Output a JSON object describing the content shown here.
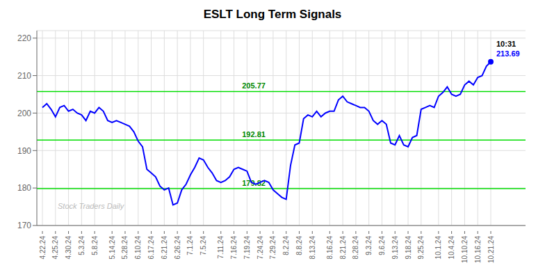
{
  "chart_data": {
    "type": "line",
    "title": "ESLT Long Term Signals",
    "categories": [
      "4.22.24",
      null,
      null,
      "4.25.24",
      null,
      null,
      "4.30.24",
      null,
      null,
      "5.3.24",
      null,
      null,
      "5.8.24",
      null,
      null,
      null,
      "5.14.24",
      null,
      null,
      "5.28.24",
      null,
      null,
      "6.10.24",
      null,
      null,
      "6.17.24",
      null,
      null,
      "6.21.24",
      null,
      null,
      "6.26.24",
      null,
      null,
      "7.1.24",
      null,
      null,
      "7.5.24",
      null,
      null,
      null,
      "7.11.24",
      null,
      null,
      "7.16.24",
      null,
      null,
      "7.19.24",
      null,
      null,
      "7.24.24",
      null,
      null,
      "7.29.24",
      null,
      null,
      "8.2.24",
      null,
      null,
      "8.8.24",
      null,
      null,
      "8.13.24",
      null,
      null,
      null,
      "8.16.24",
      null,
      null,
      "8.21.24",
      null,
      null,
      "8.28.24",
      null,
      null,
      "9.3.24",
      null,
      null,
      "9.6.24",
      null,
      null,
      "9.13.24",
      null,
      null,
      "9.18.24",
      null,
      null,
      "9.25.24",
      null,
      null,
      null,
      "10.1.24",
      null,
      null,
      "10.4.24",
      null,
      null,
      "10.10.24",
      null,
      null,
      "10.16.24",
      null,
      null,
      "10.21.24"
    ],
    "values": [
      201.5,
      202.5,
      201.0,
      199.0,
      201.5,
      202.0,
      200.5,
      201.0,
      200.0,
      199.5,
      198.0,
      200.5,
      200.0,
      201.5,
      200.5,
      198.0,
      197.5,
      198.0,
      197.5,
      197.0,
      196.5,
      195.0,
      192.5,
      191.0,
      185.0,
      184.0,
      183.0,
      180.5,
      179.5,
      180.0,
      175.5,
      176.0,
      179.5,
      181.0,
      183.5,
      185.5,
      188.0,
      187.5,
      185.5,
      184.0,
      182.0,
      181.5,
      182.0,
      183.0,
      185.0,
      185.5,
      185.0,
      184.5,
      181.5,
      181.0,
      181.5,
      182.0,
      181.5,
      179.5,
      178.5,
      177.5,
      177.0,
      186.0,
      191.5,
      192.0,
      198.5,
      199.5,
      199.0,
      200.5,
      199.0,
      200.0,
      200.5,
      200.5,
      203.5,
      204.5,
      203.0,
      202.5,
      202.0,
      201.5,
      201.5,
      200.5,
      198.0,
      197.0,
      198.0,
      197.0,
      192.0,
      191.5,
      194.0,
      191.5,
      191.0,
      193.5,
      194.0,
      201.0,
      201.5,
      202.0,
      201.5,
      204.5,
      205.5,
      207.0,
      205.0,
      204.5,
      205.0,
      207.5,
      208.5,
      207.5,
      209.5,
      210.0,
      212.5,
      213.69
    ],
    "color": "blue",
    "ylim": [
      170,
      222
    ],
    "yticks": [
      170,
      180,
      190,
      200,
      210,
      220
    ],
    "grid": true,
    "hlines": {
      "values": [
        205.77,
        192.81,
        179.82
      ],
      "color": "#00dd00"
    },
    "annotations": [
      {
        "text": "10:31",
        "color": "black"
      },
      {
        "text": "213.69",
        "color": "blue"
      }
    ],
    "watermark": {
      "text": "Stock Traders Daily",
      "color": "#bbbbbb"
    }
  }
}
